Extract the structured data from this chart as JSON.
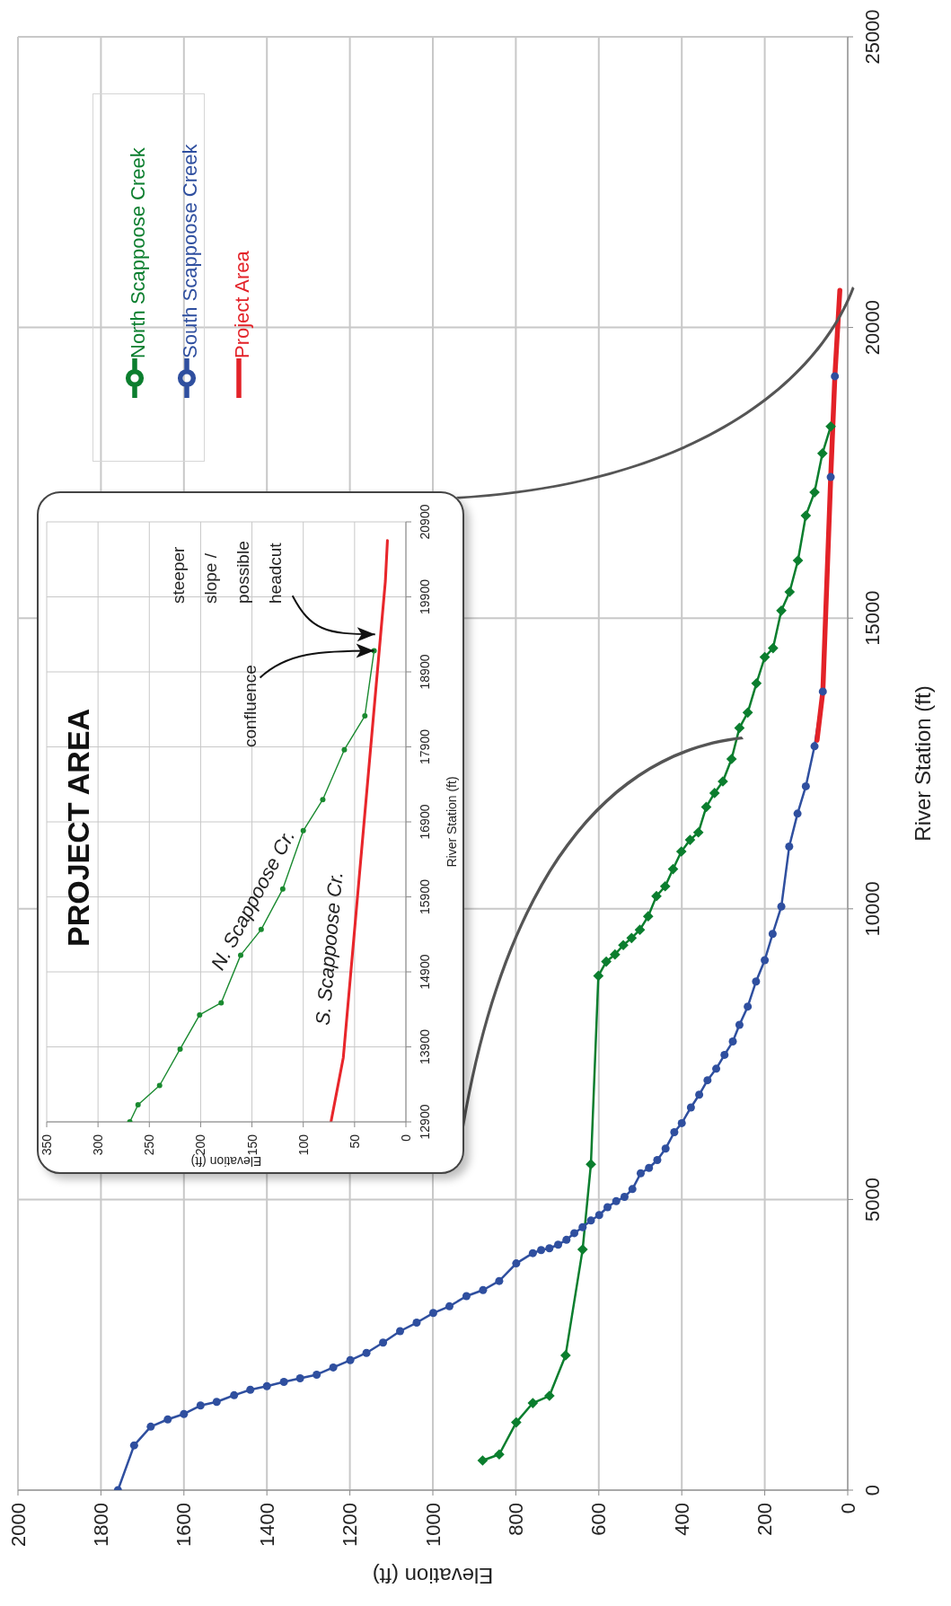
{
  "chart_data": [
    {
      "type": "line",
      "xlabel": "Elevation (ft)",
      "ylabel": "River Station (ft)",
      "xlim": [
        2000,
        0
      ],
      "xticks": [
        2000,
        1800,
        1600,
        1400,
        1200,
        1000,
        800,
        600,
        400,
        200,
        0
      ],
      "ylim": [
        0,
        25000
      ],
      "yticks": [
        0,
        5000,
        10000,
        15000,
        20000,
        25000
      ],
      "grid": true,
      "legend": "top left",
      "series": [
        {
          "name": "North Scappoose Creek",
          "color": "#0b7e2e",
          "marker": "diamond",
          "x": [
            880,
            840,
            799,
            759,
            719,
            680,
            639,
            619,
            601,
            582,
            561,
            541,
            521,
            501,
            481,
            461,
            440,
            421,
            401,
            380,
            360,
            341,
            321,
            301,
            280,
            261,
            241,
            220,
            200,
            180,
            160,
            140,
            120,
            101,
            80,
            61,
            41
          ],
          "values": [
            510,
            614,
            1165,
            1498,
            1622,
            2319,
            4139,
            5606,
            8847,
            9092,
            9214,
            9375,
            9497,
            9639,
            9871,
            10219,
            10387,
            10683,
            10986,
            11185,
            11314,
            11752,
            11991,
            12191,
            12577,
            13112,
            13376,
            13879,
            14330,
            14484,
            15129,
            15451,
            15992,
            16764,
            17165,
            17834,
            18297
          ]
        },
        {
          "name": "South Scappoose Creek",
          "color": "#2f4f9f",
          "marker": "circle",
          "x": [
            1759,
            1720,
            1680,
            1639,
            1600,
            1560,
            1521,
            1479,
            1440,
            1400,
            1359,
            1320,
            1280,
            1240,
            1199,
            1160,
            1120,
            1079,
            1039,
            999,
            960,
            919,
            879,
            840,
            799,
            759,
            739,
            719,
            698,
            678,
            659,
            639,
            619,
            599,
            579,
            558,
            538,
            519,
            499,
            479,
            459,
            439,
            418,
            400,
            378,
            358,
            338,
            317,
            297,
            277,
            261,
            241,
            221,
            200,
            181,
            160,
            141,
            121,
            101,
            80,
            60,
            41,
            31
          ],
          "values": [
            0,
            770,
            1092,
            1217,
            1310,
            1456,
            1518,
            1633,
            1726,
            1789,
            1862,
            1924,
            1986,
            2111,
            2236,
            2361,
            2538,
            2735,
            2881,
            3047,
            3162,
            3338,
            3442,
            3598,
            3900,
            4077,
            4129,
            4160,
            4222,
            4306,
            4420,
            4524,
            4638,
            4732,
            4867,
            4971,
            5044,
            5179,
            5450,
            5543,
            5678,
            5876,
            6157,
            6313,
            6583,
            6802,
            7051,
            7249,
            7488,
            7717,
            8003,
            8318,
            8750,
            9117,
            9568,
            10039,
            11070,
            11637,
            12107,
            12796,
            13737,
            17427,
            19161
          ]
        },
        {
          "name": "Project Area",
          "color": "#e32228",
          "marker": "none",
          "x": [
            74,
            60,
            41,
            31,
            19
          ],
          "values": [
            12900,
            13737,
            17427,
            19161,
            20640
          ]
        }
      ]
    },
    {
      "type": "line",
      "title": "PROJECT AREA",
      "xlabel": "Elevation (ft)",
      "ylabel": "River Station (ft)",
      "xlim": [
        350,
        0
      ],
      "xticks": [
        350,
        300,
        250,
        200,
        150,
        100,
        50,
        0
      ],
      "ylim": [
        12900,
        20900
      ],
      "yticks": [
        12900,
        13900,
        14900,
        15900,
        16900,
        17900,
        18900,
        19900,
        20900
      ],
      "grid": true,
      "annotations": [
        {
          "text": "confluence",
          "x": 31,
          "y": 19181
        },
        {
          "text": "steeper slope / possible headcut",
          "x": 30,
          "y": 19400
        }
      ],
      "series": [
        {
          "name": "N. Scappoose Cr.",
          "color": "#1a8a30",
          "marker": "circle",
          "x": [
            269,
            261,
            240,
            220,
            201,
            180,
            161,
            141,
            120,
            100,
            81,
            60,
            40,
            31
          ],
          "values": [
            12900,
            13128,
            13385,
            13871,
            14326,
            14488,
            15123,
            15465,
            16004,
            16783,
            17197,
            17862,
            18312,
            19181
          ]
        },
        {
          "name": "S. Scappoose Cr.",
          "color": "#e8262b",
          "marker": "none",
          "x": [
            73,
            61,
            20,
            18
          ],
          "values": [
            12900,
            13757,
            20110,
            20650
          ]
        }
      ]
    }
  ]
}
